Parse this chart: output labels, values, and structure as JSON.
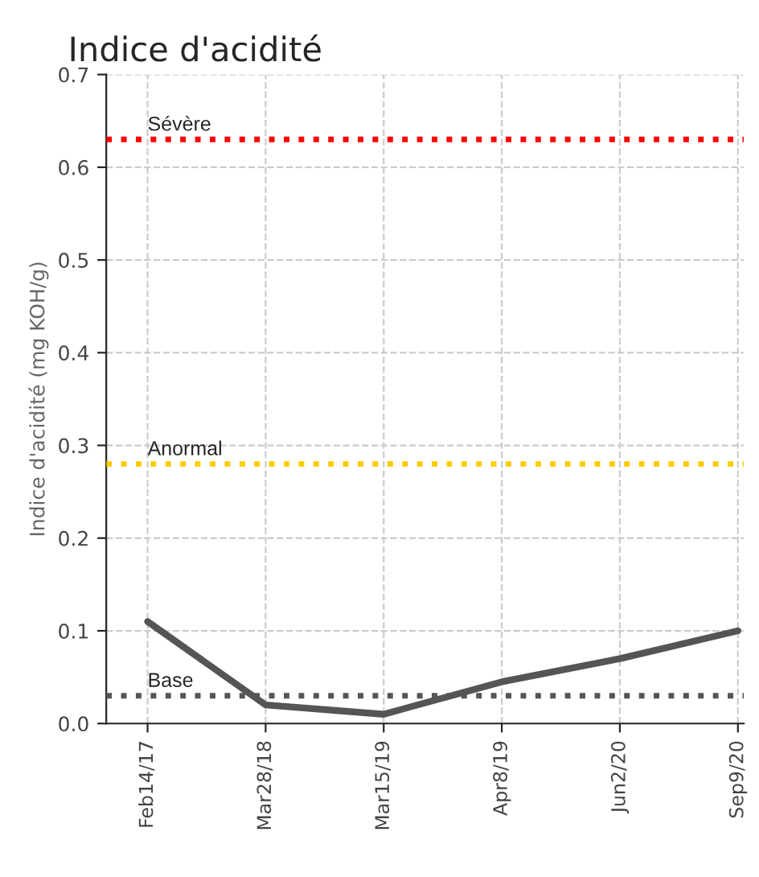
{
  "chart_data": {
    "type": "line",
    "title": "Indice d'acidité",
    "ylabel": "Indice d'acidité (mg KOH/g)",
    "categories": [
      "Feb14/17",
      "Mar28/18",
      "Mar15/19",
      "Apr8/19",
      "Jun2/20",
      "Sep9/20"
    ],
    "series": [
      {
        "color": "#555555",
        "values": [
          0.11,
          0.02,
          0.01,
          0.045,
          0.07,
          0.1
        ]
      }
    ],
    "ylim": [
      0,
      0.7
    ],
    "yticks": [
      {
        "value": 0,
        "label": "0.0"
      },
      {
        "value": 0.1,
        "label": "0.1"
      },
      {
        "value": 0.2,
        "label": "0.2"
      },
      {
        "value": 0.3,
        "label": "0.3"
      },
      {
        "value": 0.4,
        "label": "0.4"
      },
      {
        "value": 0.5,
        "label": "0.5"
      },
      {
        "value": 0.6,
        "label": "0.6"
      },
      {
        "value": 0.7,
        "label": "0.7"
      }
    ],
    "ref_lines": [
      {
        "axis": "y",
        "value": 0.63,
        "label": "Sévère",
        "color": "#ff0000",
        "line_style": "dotted"
      },
      {
        "axis": "y",
        "value": 0.28,
        "label": "Anormal",
        "color": "#ffcc00",
        "line_style": "dotted"
      },
      {
        "axis": "y",
        "value": 0.03,
        "label": "Base",
        "color": "#555555",
        "line_style": "dotted"
      }
    ],
    "grid": true,
    "line_style": "solid",
    "marker": "none"
  }
}
